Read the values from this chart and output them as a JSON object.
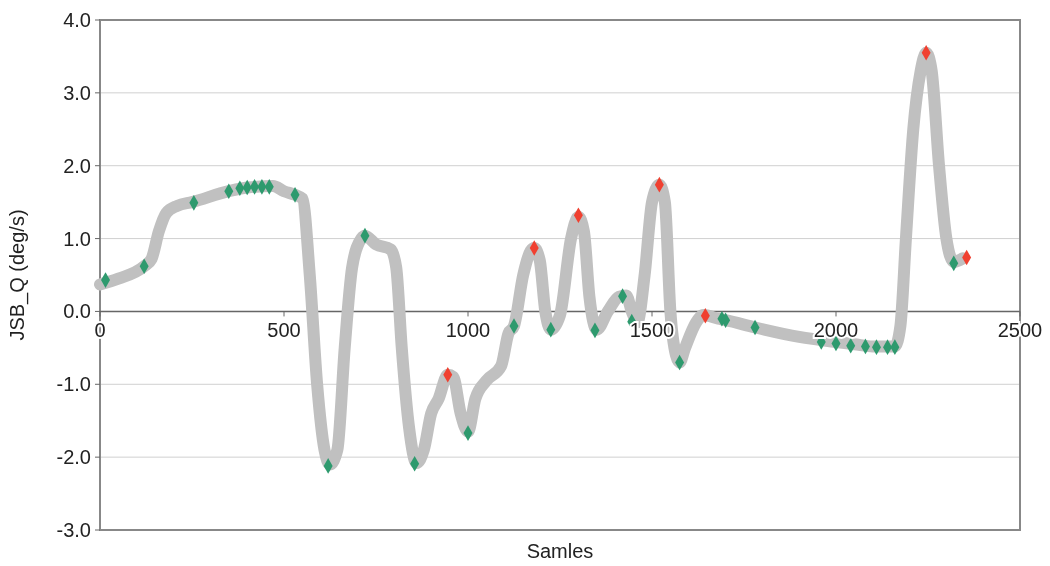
{
  "chart_data": {
    "type": "line",
    "xlabel": "Samles",
    "ylabel": "JSB_Q (deg/s)",
    "xlim": [
      0,
      2500
    ],
    "ylim": [
      -3,
      4
    ],
    "xticks": [
      0,
      500,
      1000,
      1500,
      2000,
      2500
    ],
    "yticks": [
      {
        "value": -3,
        "label": "-3.0"
      },
      {
        "value": -2,
        "label": "-2.0"
      },
      {
        "value": -1,
        "label": "-1.0"
      },
      {
        "value": 0,
        "label": "0.0"
      },
      {
        "value": 1,
        "label": "1.0"
      },
      {
        "value": 2,
        "label": "2.0"
      },
      {
        "value": 3,
        "label": "3.0"
      },
      {
        "value": 4,
        "label": "4.0"
      }
    ],
    "grid": "y",
    "series": [
      {
        "color": "#c0c0c0",
        "marker": "none",
        "x": [
          0,
          50,
          120,
          140,
          160,
          180,
          210,
          250,
          350,
          400,
          470,
          500,
          530,
          550,
          570,
          590,
          610,
          625,
          645,
          665,
          685,
          710,
          720,
          750,
          790,
          805,
          820,
          840,
          860,
          880,
          900,
          920,
          945,
          960,
          980,
          1000,
          1020,
          1050,
          1090,
          1110,
          1125,
          1150,
          1170,
          1180,
          1195,
          1210,
          1225,
          1250,
          1280,
          1300,
          1315,
          1330,
          1350,
          1380,
          1410,
          1430,
          1445,
          1460,
          1480,
          1500,
          1520,
          1535,
          1550,
          1565,
          1575,
          1590,
          1620,
          1640,
          1680,
          1700,
          1780,
          1900,
          2000,
          2050,
          2100,
          2160,
          2175,
          2190,
          2210,
          2230,
          2245,
          2260,
          2280,
          2300,
          2320,
          2345
        ],
        "values": [
          0.37,
          0.45,
          0.62,
          0.72,
          1.1,
          1.35,
          1.45,
          1.5,
          1.65,
          1.7,
          1.72,
          1.65,
          1.6,
          1.55,
          0.5,
          -1.0,
          -1.9,
          -2.1,
          -1.9,
          -0.5,
          0.6,
          1.0,
          1.04,
          0.92,
          0.85,
          0.6,
          -0.5,
          -1.6,
          -2.08,
          -1.9,
          -1.4,
          -1.2,
          -0.87,
          -0.9,
          -1.4,
          -1.65,
          -1.2,
          -0.95,
          -0.75,
          -0.3,
          -0.2,
          0.5,
          0.83,
          0.87,
          0.7,
          0.0,
          -0.25,
          -0.05,
          1.0,
          1.3,
          1.1,
          0.2,
          -0.25,
          0.0,
          0.2,
          0.22,
          0.0,
          -0.15,
          0.5,
          1.5,
          1.74,
          1.5,
          0.0,
          -0.6,
          -0.7,
          -0.5,
          -0.15,
          -0.05,
          -0.1,
          -0.12,
          -0.22,
          -0.35,
          -0.42,
          -0.45,
          -0.48,
          -0.48,
          -0.2,
          1.0,
          2.5,
          3.3,
          3.55,
          3.3,
          2.0,
          1.0,
          0.68,
          0.73
        ]
      },
      {
        "type": "scatter",
        "color": "#2e9a6e",
        "marker": "diamond",
        "x": [
          15,
          120,
          255,
          350,
          380,
          400,
          420,
          440,
          460,
          530,
          620,
          720,
          855,
          1000,
          1125,
          1225,
          1345,
          1420,
          1445,
          1575,
          1690,
          1700,
          1780,
          1960,
          2000,
          2040,
          2080,
          2110,
          2140,
          2160,
          2320
        ],
        "values": [
          0.43,
          0.62,
          1.49,
          1.65,
          1.69,
          1.7,
          1.71,
          1.71,
          1.71,
          1.6,
          -2.12,
          1.04,
          -2.09,
          -1.67,
          -0.2,
          -0.25,
          -0.26,
          0.21,
          -0.14,
          -0.7,
          -0.1,
          -0.12,
          -0.22,
          -0.42,
          -0.44,
          -0.47,
          -0.48,
          -0.49,
          -0.49,
          -0.49,
          0.66
        ]
      },
      {
        "type": "scatter",
        "color": "#f04030",
        "marker": "diamond",
        "x": [
          945,
          1180,
          1300,
          1520,
          1645,
          2245,
          2355
        ],
        "values": [
          -0.87,
          0.87,
          1.32,
          1.74,
          -0.06,
          3.55,
          0.74
        ]
      }
    ]
  }
}
